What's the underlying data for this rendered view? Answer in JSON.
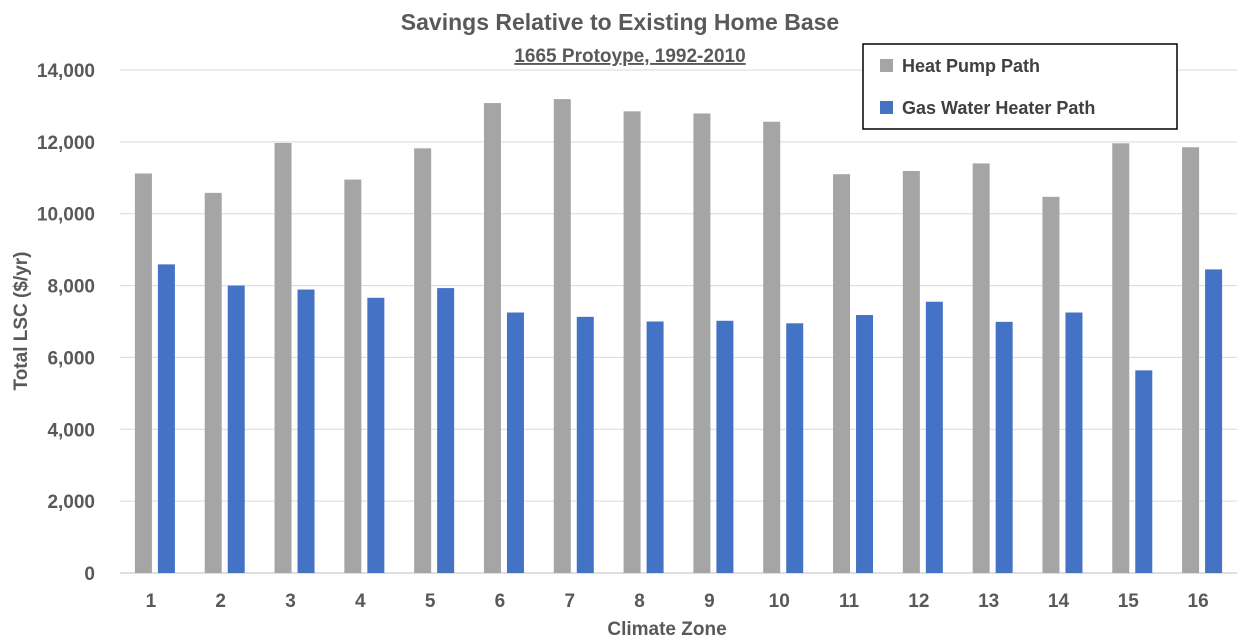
{
  "chart_data": {
    "type": "bar",
    "title": "Savings Relative to Existing Home Base",
    "subtitle": "1665 Protoype, 1992-2010",
    "xlabel": "Climate Zone",
    "ylabel": "Total LSC ($/yr)",
    "ylim": [
      0,
      14000
    ],
    "yticks": [
      0,
      2000,
      4000,
      6000,
      8000,
      10000,
      12000,
      14000
    ],
    "ytick_labels": [
      "0",
      "2,000",
      "4,000",
      "6,000",
      "8,000",
      "10,000",
      "12,000",
      "14,000"
    ],
    "grid": true,
    "legend_position": "top-right",
    "categories": [
      "1",
      "2",
      "3",
      "4",
      "5",
      "6",
      "7",
      "8",
      "9",
      "10",
      "11",
      "12",
      "13",
      "14",
      "15",
      "16"
    ],
    "series": [
      {
        "name": "Heat Pump Path",
        "color": "#a5a5a5",
        "values": [
          11120,
          10580,
          11970,
          10950,
          11820,
          13080,
          13190,
          12850,
          12790,
          12560,
          11100,
          11190,
          11400,
          10470,
          11960,
          11850
        ]
      },
      {
        "name": "Gas Water Heater Path",
        "color": "#4472c4",
        "values": [
          8590,
          8000,
          7890,
          7660,
          7930,
          7250,
          7130,
          7000,
          7020,
          6950,
          7180,
          7550,
          6990,
          7250,
          5640,
          8450
        ]
      }
    ]
  }
}
